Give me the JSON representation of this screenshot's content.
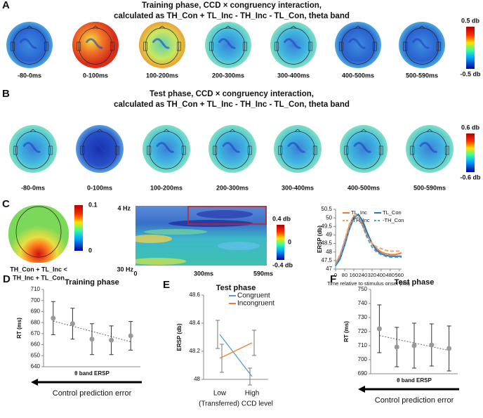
{
  "panel_A": {
    "label": "A",
    "title": [
      "Training phase, CCD × congruency interaction,",
      "calculated as TH_Con + TL_Inc - TH_Inc - TL_Con, theta band"
    ],
    "times": [
      "-80-0ms",
      "0-100ms",
      "100-200ms",
      "200-300ms",
      "300-400ms",
      "400-500ms",
      "500-590ms"
    ],
    "colorbar": [
      "0.5 db",
      "-0.5 db"
    ]
  },
  "panel_B": {
    "label": "B",
    "title": [
      "Test phase, CCD × congruency interaction,",
      "calculated as TH_Con + TL_Inc - TH_Inc - TL_Con, theta band"
    ],
    "times": [
      "-80-0ms",
      "0-100ms",
      "100-200ms",
      "200-300ms",
      "300-400ms",
      "400-500ms",
      "500-590ms"
    ],
    "colorbar": [
      "0.6 db",
      "-0.6 db"
    ]
  },
  "panel_C": {
    "label": "C",
    "topo_colorbar": [
      "0.1",
      "0"
    ],
    "topo_caption": [
      "TH_Con + TL_Inc <",
      "TH_Inc + TL_Con"
    ],
    "heatmap": {
      "y_labels": [
        "4 Hz",
        "30 Hz"
      ],
      "x_labels": [
        "0",
        "300ms",
        "590ms"
      ],
      "colorbar": [
        "0.4 db",
        "0",
        "-0.4 db"
      ]
    }
  },
  "chart_data": [
    {
      "type": "line",
      "label": "",
      "ylabel": "ERSP (db)",
      "xlabel": "Time relative to stimulus onset (ms)",
      "x": [
        0,
        40,
        80,
        120,
        160,
        200,
        240,
        280,
        320,
        360,
        400,
        440,
        480,
        520,
        560,
        580
      ],
      "xlim": [
        0,
        580
      ],
      "xticks": [
        0,
        80,
        160,
        240,
        320,
        400,
        480,
        560
      ],
      "ylim": [
        47,
        50.5
      ],
      "yticks": [
        47,
        47.5,
        48,
        48.5,
        49,
        49.5,
        50,
        50.5
      ],
      "legend": "upper right",
      "series": [
        {
          "name": "TL_Inc",
          "color": "#ed7d31",
          "dashed": false,
          "values": [
            47.3,
            47.8,
            48.6,
            49.5,
            50.1,
            50.2,
            49.7,
            49.0,
            48.5,
            48.2,
            48.0,
            47.9,
            47.85,
            47.85,
            47.9,
            47.95
          ]
        },
        {
          "name": "TL_Con",
          "color": "#2e75b6",
          "dashed": false,
          "values": [
            47.2,
            47.6,
            48.4,
            49.3,
            50.0,
            50.2,
            49.8,
            49.1,
            48.5,
            48.1,
            47.9,
            47.8,
            47.75,
            47.75,
            47.75,
            47.75
          ]
        },
        {
          "name": "-TH_Inc",
          "color": "#f4a460",
          "dashed": true,
          "values": [
            47.35,
            47.85,
            48.7,
            49.6,
            50.15,
            50.1,
            49.5,
            48.9,
            48.5,
            48.3,
            48.2,
            48.1,
            48.05,
            48.05,
            48.05,
            48.05
          ]
        },
        {
          "name": "-TH_Con",
          "color": "#5b9bd5",
          "dashed": true,
          "values": [
            47.25,
            47.7,
            48.5,
            49.3,
            49.95,
            50.0,
            49.5,
            48.8,
            48.3,
            48.0,
            47.85,
            47.75,
            47.7,
            47.7,
            47.7,
            47.7
          ]
        }
      ]
    },
    {
      "type": "errorbar",
      "label": "D",
      "title": "Training phase",
      "ylabel": "RT (ms)",
      "xlabel": "θ band ERSP",
      "annotation": "Control prediction error",
      "categories": [
        null,
        null,
        null,
        null,
        null
      ],
      "values": [
        684,
        679,
        665,
        664,
        668
      ],
      "errors": [
        15,
        14,
        14,
        13,
        13
      ],
      "ylim": [
        640,
        710
      ],
      "yticks": [
        640,
        650,
        660,
        670,
        680,
        690,
        700,
        710
      ],
      "color": "#999999"
    },
    {
      "type": "line",
      "label": "E",
      "title": "Test phase",
      "ylabel": "ERSP (db)",
      "xlabel": "(Transferred) CCD level",
      "categories": [
        "Low",
        "High"
      ],
      "ylim": [
        48,
        48.6
      ],
      "yticks": [
        48,
        48.2,
        48.4,
        48.6
      ],
      "legend": "upper center",
      "series": [
        {
          "name": "Congruent",
          "color": "#5b9bd5",
          "dashed": false,
          "values": [
            48.32,
            48.02
          ],
          "errors": [
            0.1,
            0.06
          ]
        },
        {
          "name": "Incongruent",
          "color": "#ed7d31",
          "dashed": false,
          "values": [
            48.15,
            48.26
          ],
          "errors": [
            0.1,
            0.09
          ]
        }
      ]
    },
    {
      "type": "errorbar",
      "label": "F",
      "title": "Test phase",
      "ylabel": "RT (ms)",
      "xlabel": "θ band ERSP",
      "annotation": "Control prediction error",
      "categories": [
        null,
        null,
        null,
        null,
        null
      ],
      "values": [
        722,
        709,
        710,
        710.5,
        708
      ],
      "errors": [
        17,
        14,
        16,
        15,
        16
      ],
      "ylim": [
        690,
        750
      ],
      "yticks": [
        690,
        700,
        710,
        720,
        730,
        740,
        750
      ],
      "color": "#999999"
    }
  ]
}
